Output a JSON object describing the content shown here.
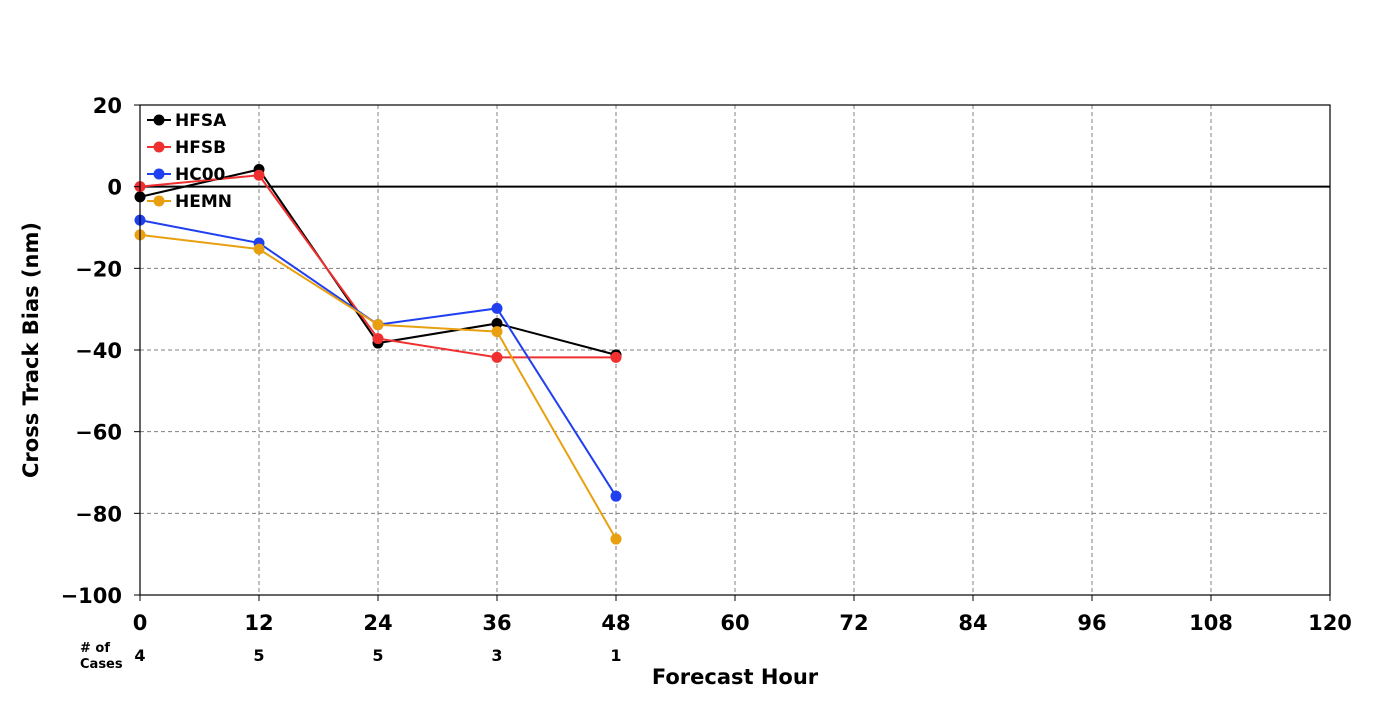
{
  "chart_data": {
    "type": "line",
    "title": "",
    "xlabel": "Forecast Hour",
    "ylabel": "Cross Track Bias (nm)",
    "xlim": [
      0,
      120
    ],
    "ylim": [
      -100,
      20
    ],
    "x_ticks": [
      0,
      12,
      24,
      36,
      48,
      60,
      72,
      84,
      96,
      108,
      120
    ],
    "y_ticks": [
      20,
      0,
      -20,
      -40,
      -60,
      -80,
      -100
    ],
    "x_tick_labels": [
      "0",
      "12",
      "24",
      "36",
      "48",
      "60",
      "72",
      "84",
      "96",
      "108",
      "120"
    ],
    "y_tick_labels": [
      "20",
      "0",
      "−20",
      "−40",
      "−60",
      "−80",
      "−100"
    ],
    "grid": true,
    "zero_line": 0,
    "legend_position": "top-left",
    "cases_label_line1": "# of",
    "cases_label_line2": "Cases",
    "cases": [
      {
        "x": 0,
        "n": "4"
      },
      {
        "x": 12,
        "n": "5"
      },
      {
        "x": 24,
        "n": "5"
      },
      {
        "x": 36,
        "n": "3"
      },
      {
        "x": 48,
        "n": "1"
      }
    ],
    "series": [
      {
        "name": "HFSA",
        "color": "#000000",
        "x": [
          0,
          12,
          24,
          36,
          48
        ],
        "y": [
          -2.5,
          4.2,
          -38.3,
          -33.5,
          -41.2
        ]
      },
      {
        "name": "HFSB",
        "color": "#f03030",
        "x": [
          0,
          12,
          24,
          36,
          48
        ],
        "y": [
          0,
          2.8,
          -37.2,
          -41.8,
          -41.8
        ]
      },
      {
        "name": "HC00",
        "color": "#2040f0",
        "x": [
          0,
          12,
          24,
          36,
          48
        ],
        "y": [
          -8.2,
          -13.8,
          -33.8,
          -29.8,
          -75.8
        ]
      },
      {
        "name": "HEMN",
        "color": "#e8a010",
        "x": [
          0,
          12,
          24,
          36,
          48
        ],
        "y": [
          -11.8,
          -15.3,
          -33.8,
          -35.5,
          -86.3
        ]
      }
    ]
  }
}
